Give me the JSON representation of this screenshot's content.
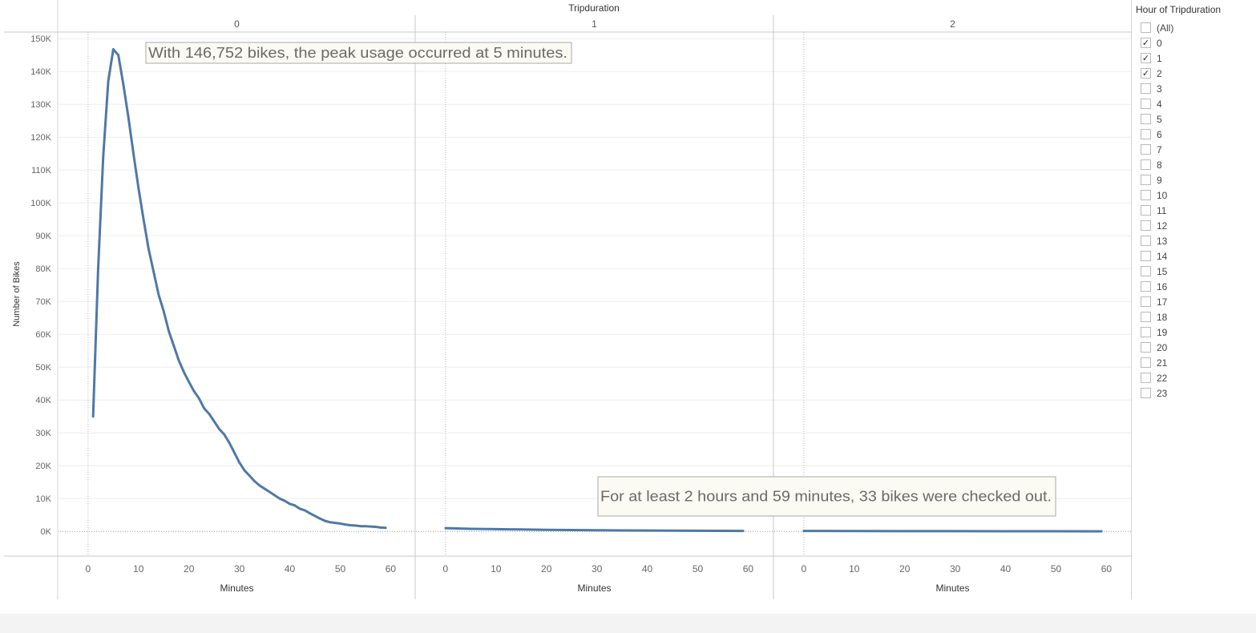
{
  "chart_data": {
    "type": "line",
    "title": "Tripduration",
    "facet_labels": [
      "0",
      "1",
      "2"
    ],
    "xlabel": "Minutes",
    "ylabel": "Number of Bikes",
    "xlim": [
      -3,
      62
    ],
    "ylim": [
      -7500,
      152000
    ],
    "x_ticks": [
      "0",
      "10",
      "20",
      "30",
      "40",
      "50",
      "60"
    ],
    "y_ticks": [
      "0K",
      "10K",
      "20K",
      "30K",
      "40K",
      "50K",
      "60K",
      "70K",
      "80K",
      "90K",
      "100K",
      "110K",
      "120K",
      "130K",
      "140K",
      "150K"
    ],
    "line_color": "#4e79a7",
    "series": [
      {
        "facet": "0",
        "x": [
          1,
          2,
          3,
          4,
          5,
          6,
          7,
          8,
          9,
          10,
          11,
          12,
          13,
          14,
          15,
          16,
          17,
          18,
          19,
          20,
          21,
          22,
          23,
          24,
          25,
          26,
          27,
          28,
          29,
          30,
          31,
          32,
          33,
          34,
          35,
          36,
          37,
          38,
          39,
          40,
          41,
          42,
          43,
          44,
          45,
          46,
          47,
          48,
          49,
          50,
          51,
          52,
          53,
          54,
          55,
          56,
          57,
          58,
          59
        ],
        "y": [
          35000,
          80000,
          114000,
          137000,
          146752,
          145000,
          136000,
          126000,
          115000,
          104500,
          95000,
          86000,
          79000,
          72000,
          67000,
          61000,
          56500,
          52000,
          48500,
          45500,
          42700,
          40500,
          37500,
          35800,
          33500,
          31200,
          29500,
          27000,
          24000,
          21000,
          18600,
          17000,
          15300,
          14000,
          13000,
          12000,
          11000,
          10000,
          9300,
          8400,
          7900,
          6900,
          6400,
          5500,
          4700,
          3900,
          3200,
          2800,
          2600,
          2400,
          2100,
          1900,
          1800,
          1600,
          1600,
          1500,
          1400,
          1200,
          1100
        ]
      },
      {
        "facet": "1",
        "x": [
          0,
          5,
          10,
          15,
          20,
          25,
          30,
          35,
          40,
          45,
          50,
          55,
          59
        ],
        "y": [
          1000,
          800,
          700,
          600,
          500,
          420,
          370,
          320,
          280,
          240,
          200,
          170,
          150
        ]
      },
      {
        "facet": "2",
        "x": [
          0,
          10,
          20,
          30,
          40,
          50,
          59
        ],
        "y": [
          150,
          120,
          100,
          80,
          60,
          45,
          33
        ]
      }
    ],
    "annotations": [
      {
        "text": "With 146,752 bikes, the peak usage occurred at 5 minutes."
      },
      {
        "text": "For at least 2 hours and 59 minutes, 33 bikes were checked out."
      }
    ]
  },
  "filter": {
    "title": "Hour of Tripduration",
    "options": [
      {
        "label": "(All)",
        "checked": false
      },
      {
        "label": "0",
        "checked": true
      },
      {
        "label": "1",
        "checked": true
      },
      {
        "label": "2",
        "checked": true
      },
      {
        "label": "3",
        "checked": false
      },
      {
        "label": "4",
        "checked": false
      },
      {
        "label": "5",
        "checked": false
      },
      {
        "label": "6",
        "checked": false
      },
      {
        "label": "7",
        "checked": false
      },
      {
        "label": "8",
        "checked": false
      },
      {
        "label": "9",
        "checked": false
      },
      {
        "label": "10",
        "checked": false
      },
      {
        "label": "11",
        "checked": false
      },
      {
        "label": "12",
        "checked": false
      },
      {
        "label": "13",
        "checked": false
      },
      {
        "label": "14",
        "checked": false
      },
      {
        "label": "15",
        "checked": false
      },
      {
        "label": "16",
        "checked": false
      },
      {
        "label": "17",
        "checked": false
      },
      {
        "label": "18",
        "checked": false
      },
      {
        "label": "19",
        "checked": false
      },
      {
        "label": "20",
        "checked": false
      },
      {
        "label": "21",
        "checked": false
      },
      {
        "label": "22",
        "checked": false
      },
      {
        "label": "23",
        "checked": false
      }
    ]
  }
}
